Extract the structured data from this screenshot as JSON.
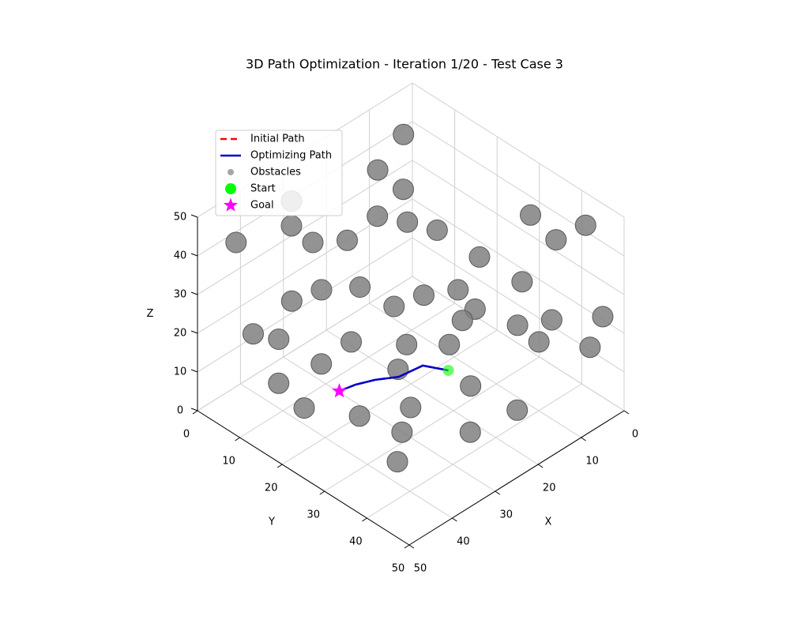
{
  "chart_data": {
    "type": "scatter3d",
    "title": "3D Path Optimization - Iteration 1/20 - Test Case 3",
    "xlabel": "X",
    "ylabel": "Y",
    "zlabel": "Z",
    "xlim": [
      0,
      50
    ],
    "ylim": [
      0,
      50
    ],
    "zlim": [
      0,
      50
    ],
    "xticks": [
      0,
      10,
      20,
      30,
      40,
      50
    ],
    "yticks": [
      0,
      10,
      20,
      30,
      40,
      50
    ],
    "zticks": [
      0,
      10,
      20,
      30,
      40,
      50
    ],
    "grid": true,
    "legend": "upper left",
    "paths": [
      {
        "name": "Initial Path",
        "color": "#ff0000",
        "dashed": true,
        "x": [
          36.9,
          33.8,
          30.6,
          27.3,
          22.4,
          20.3
        ],
        "y": [
          20.2,
          20.9,
          22.3,
          24.5,
          25.2,
          29.1
        ],
        "z": [
          10,
          10,
          10,
          10,
          10,
          10
        ]
      },
      {
        "name": "Optimizing Path",
        "color": "#0000cc",
        "dashed": false,
        "x": [
          36.9,
          33.8,
          30.6,
          27.3,
          22.4,
          20.3
        ],
        "y": [
          20.2,
          20.9,
          22.3,
          24.5,
          25.2,
          29.1
        ],
        "z": [
          10,
          10,
          10,
          10,
          10,
          10
        ]
      }
    ],
    "obstacles": {
      "name": "Obstacles",
      "color": "#808080",
      "x": [
        7,
        13,
        10,
        37,
        43,
        26,
        18,
        10,
        10,
        7,
        6,
        5,
        6,
        26,
        31,
        33,
        22,
        15,
        40,
        38,
        30,
        24,
        19,
        11,
        6,
        3,
        3,
        8,
        34,
        39,
        37,
        32,
        26,
        28,
        30,
        36,
        22,
        17,
        16,
        13,
        13,
        20,
        34,
        12,
        36
      ],
      "y": [
        5,
        5,
        8,
        9,
        2,
        11,
        10,
        16,
        26,
        35,
        47,
        39,
        32,
        14,
        10,
        5,
        18,
        26,
        3,
        7,
        16,
        23,
        28,
        36,
        39,
        48,
        45,
        38,
        13,
        8,
        12,
        20,
        23,
        28,
        28,
        33,
        36,
        31,
        41,
        28,
        25,
        23,
        11,
        11,
        8
      ],
      "z": [
        45,
        40,
        35,
        45,
        40,
        35,
        35,
        30,
        30,
        45,
        50,
        40,
        25,
        25,
        25,
        20,
        20,
        25,
        15,
        15,
        15,
        15,
        15,
        20,
        20,
        25,
        15,
        15,
        10,
        5,
        0,
        0,
        10,
        5,
        0,
        0,
        0,
        5,
        5,
        20,
        15,
        25,
        40,
        30,
        50
      ]
    },
    "start": {
      "name": "Start",
      "color": "#00ff00",
      "x": 20.3,
      "y": 29.1,
      "z": 10
    },
    "goal": {
      "name": "Goal",
      "color": "#ff00ff",
      "x": 36.9,
      "y": 20.2,
      "z": 10
    }
  }
}
